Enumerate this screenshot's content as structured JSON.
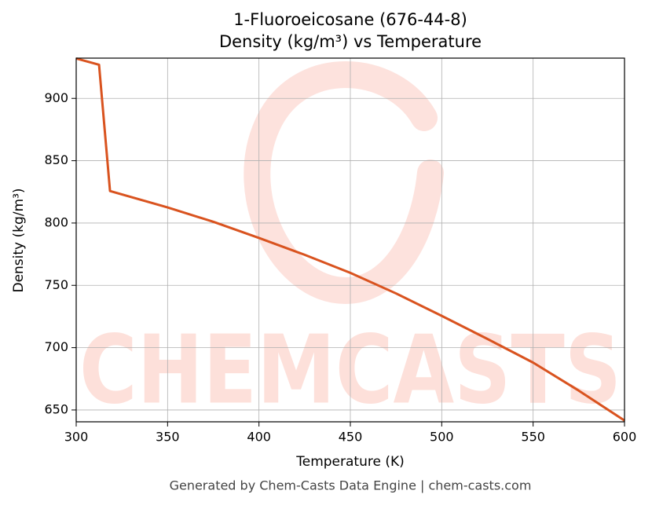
{
  "chart_data": {
    "type": "line",
    "title": "1-Fluoroeicosane (676-44-8)",
    "subtitle": "Density (kg/m³) vs Temperature",
    "x_label": "Temperature (K)",
    "y_label": "Density (kg/m³)",
    "watermark": "CHEMCASTS",
    "footer": "Generated by Chem-Casts Data Engine | chem-casts.com",
    "x": [
      300,
      312.5,
      318.5,
      350,
      375,
      400,
      425,
      450,
      475,
      500,
      525,
      550,
      575,
      600
    ],
    "series": [
      {
        "name": "Density",
        "color": "#d9531f",
        "values": [
          932,
          927,
          825.7,
          812.5,
          801,
          788,
          774.5,
          760,
          743.5,
          725.5,
          707,
          688,
          665.5,
          641.5
        ]
      }
    ],
    "xlim": [
      300,
      600
    ],
    "xticks": [
      300,
      350,
      400,
      450,
      500,
      550,
      600
    ],
    "ylim": [
      640.5,
      932.3
    ],
    "yticks": [
      650,
      700,
      750,
      800,
      850,
      900
    ],
    "grid": true
  }
}
